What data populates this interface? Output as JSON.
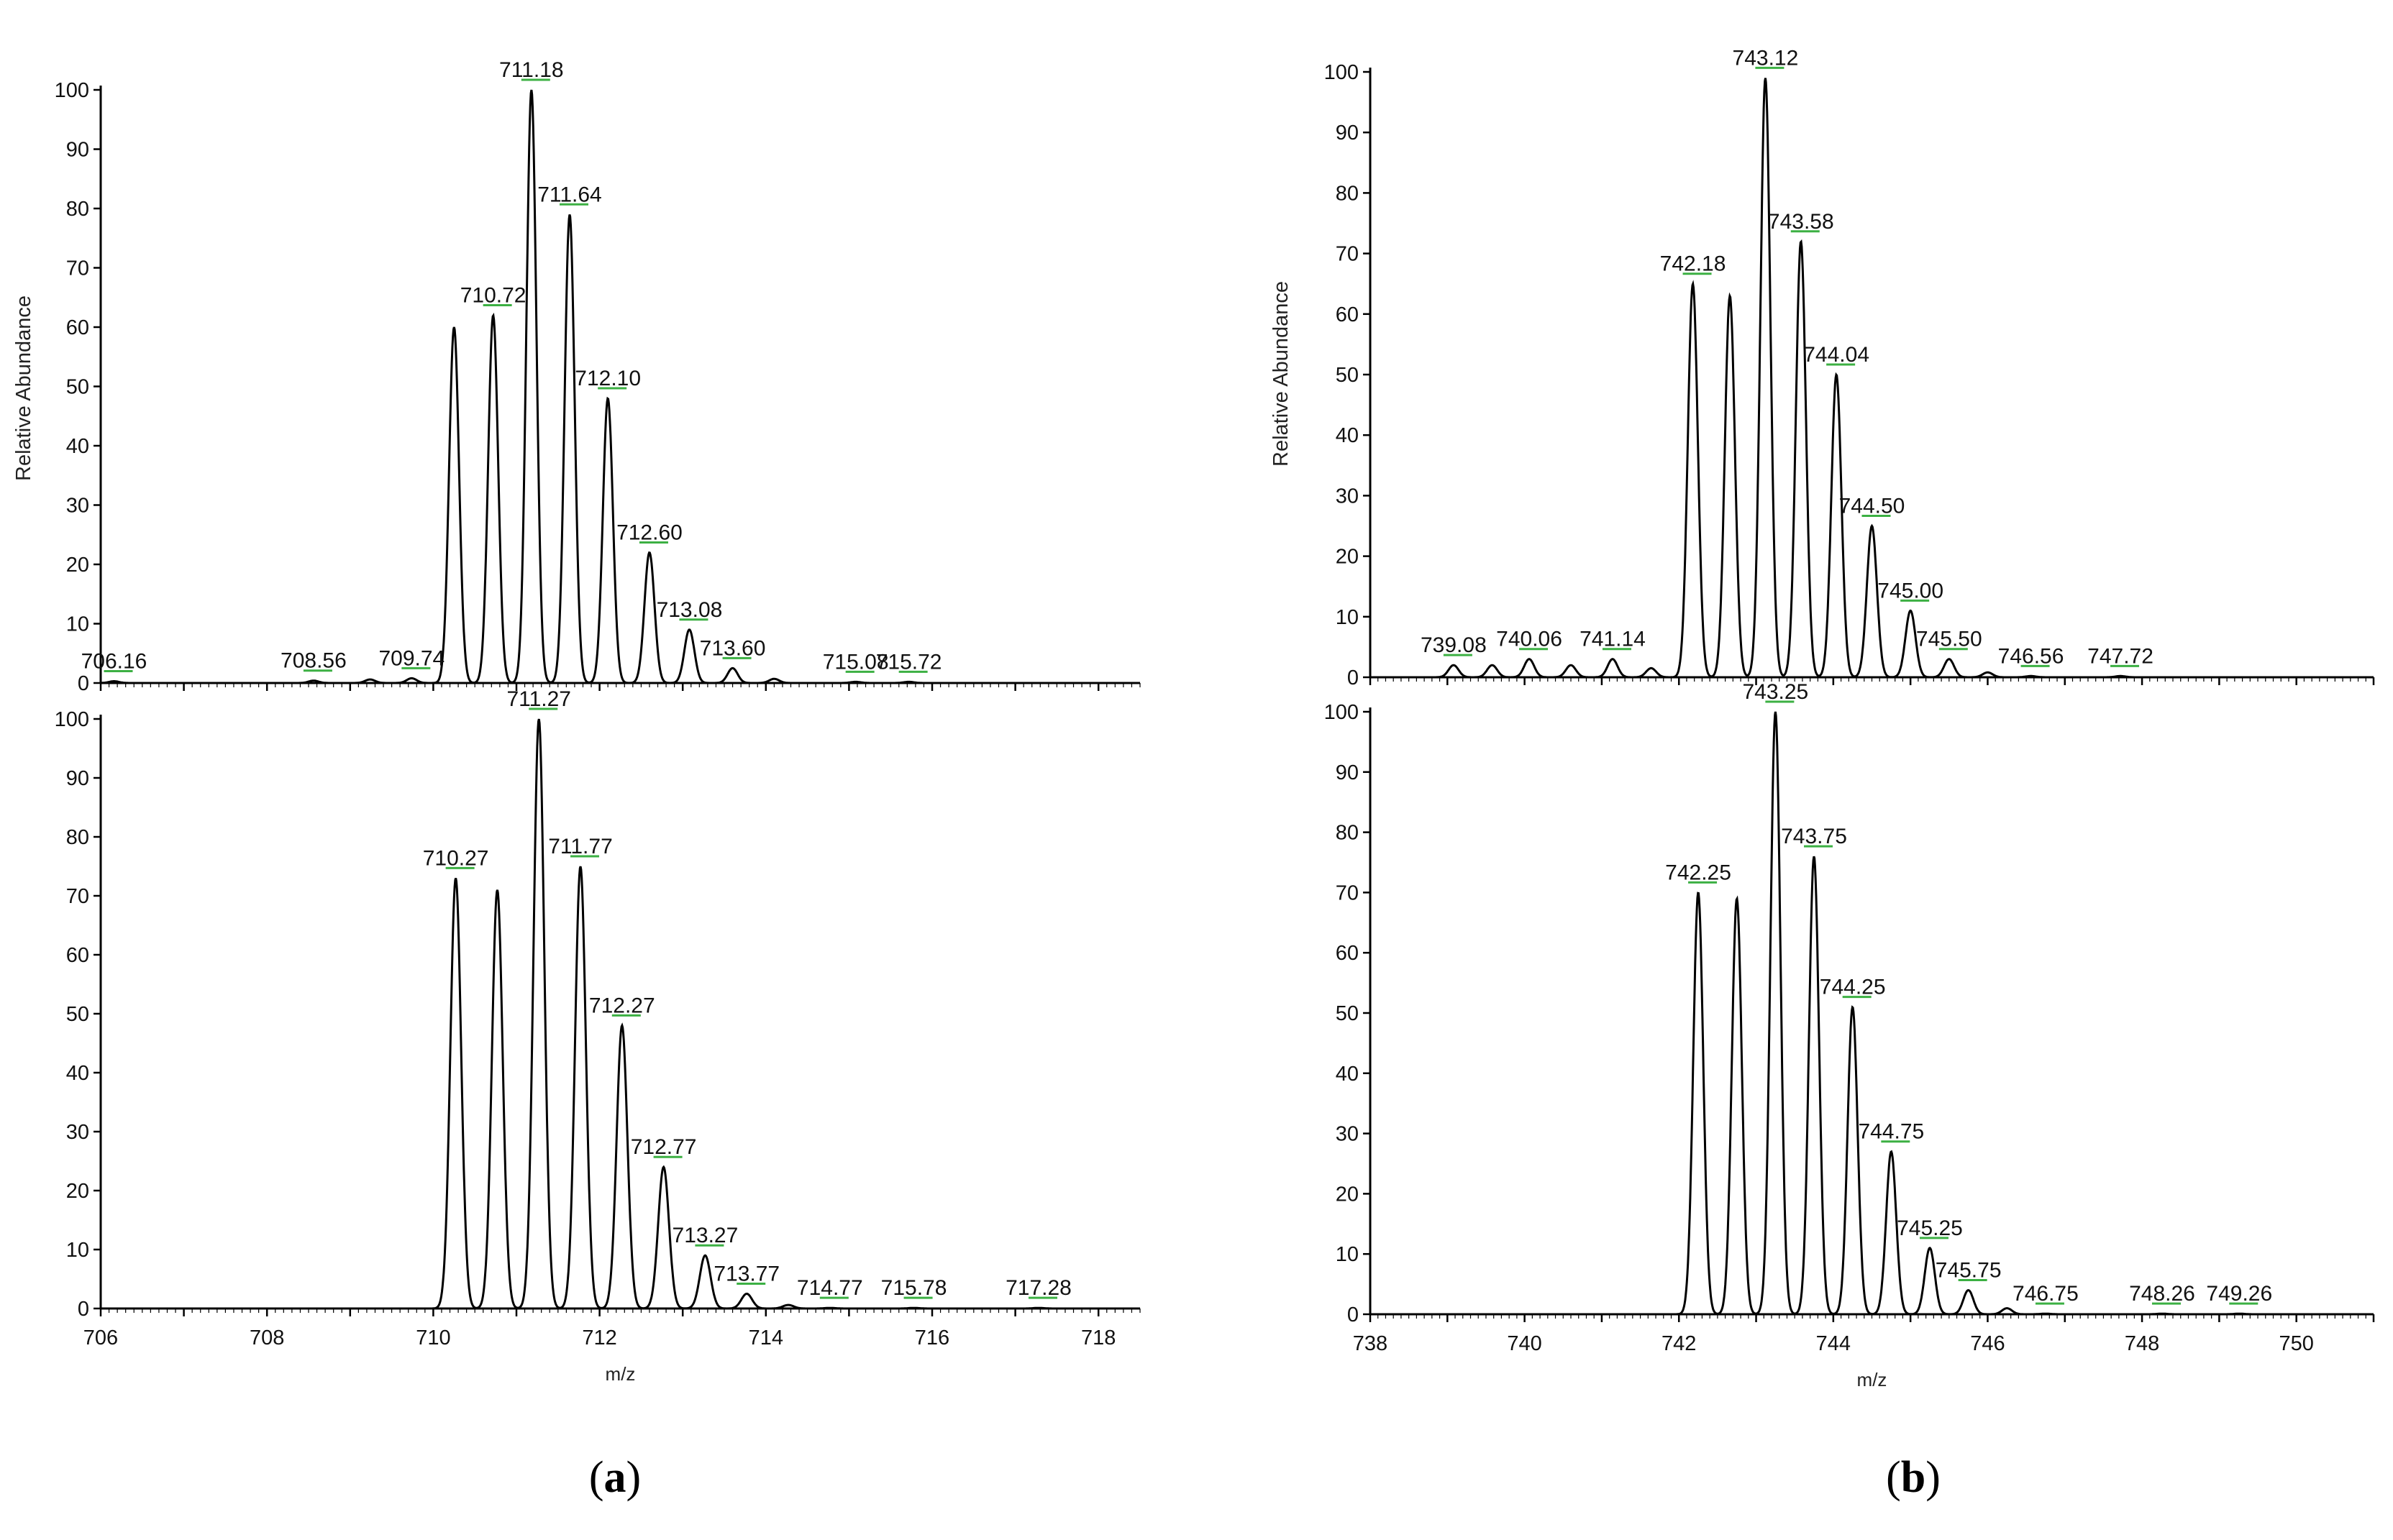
{
  "panels": {
    "a": {
      "open": "(",
      "letter": "a",
      "close": ")"
    },
    "b": {
      "open": "(",
      "letter": "b",
      "close": ")"
    }
  },
  "colors": {
    "trace": "#000000",
    "axis": "#000000",
    "label_marker": "#3cb043"
  },
  "chart_data": [
    {
      "id": "a-top",
      "type": "line",
      "panel": "a",
      "position": "top",
      "xlabel": "",
      "ylabel": "Relative Abundance",
      "xlim": [
        706,
        718.5
      ],
      "ylim": [
        0,
        100
      ],
      "yticks": [
        0,
        10,
        20,
        30,
        40,
        50,
        60,
        70,
        80,
        90,
        100
      ],
      "xticks": [],
      "peak_width": 0.06,
      "peaks": [
        {
          "x": 706.16,
          "y": 0.3,
          "label": "706.16"
        },
        {
          "x": 708.56,
          "y": 0.4,
          "label": "708.56"
        },
        {
          "x": 709.24,
          "y": 0.6
        },
        {
          "x": 709.74,
          "y": 0.8,
          "label": "709.74"
        },
        {
          "x": 710.25,
          "y": 60
        },
        {
          "x": 710.72,
          "y": 62,
          "label": "710.72"
        },
        {
          "x": 711.18,
          "y": 100,
          "label": "711.18"
        },
        {
          "x": 711.64,
          "y": 79,
          "label": "711.64"
        },
        {
          "x": 712.1,
          "y": 48,
          "label": "712.10"
        },
        {
          "x": 712.6,
          "y": 22,
          "label": "712.60"
        },
        {
          "x": 713.08,
          "y": 9,
          "label": "713.08"
        },
        {
          "x": 713.6,
          "y": 2.5,
          "label": "713.60"
        },
        {
          "x": 714.1,
          "y": 0.7
        },
        {
          "x": 715.08,
          "y": 0.2,
          "label": "715.08"
        },
        {
          "x": 715.72,
          "y": 0.2,
          "label": "715.72"
        }
      ]
    },
    {
      "id": "a-bottom",
      "type": "line",
      "panel": "a",
      "position": "bottom",
      "xlabel": "m/z",
      "ylabel": "",
      "xlim": [
        706,
        718.5
      ],
      "ylim": [
        0,
        100
      ],
      "yticks": [
        0,
        10,
        20,
        30,
        40,
        50,
        60,
        70,
        80,
        90,
        100
      ],
      "xticks": [
        706,
        708,
        710,
        712,
        714,
        716,
        718
      ],
      "peak_width": 0.065,
      "peaks": [
        {
          "x": 710.27,
          "y": 73,
          "label": "710.27"
        },
        {
          "x": 710.77,
          "y": 71
        },
        {
          "x": 711.27,
          "y": 100,
          "label": "711.27"
        },
        {
          "x": 711.77,
          "y": 75,
          "label": "711.77"
        },
        {
          "x": 712.27,
          "y": 48,
          "label": "712.27"
        },
        {
          "x": 712.77,
          "y": 24,
          "label": "712.77"
        },
        {
          "x": 713.27,
          "y": 9,
          "label": "713.27"
        },
        {
          "x": 713.77,
          "y": 2.5,
          "label": "713.77"
        },
        {
          "x": 714.27,
          "y": 0.6
        },
        {
          "x": 714.77,
          "y": 0.1,
          "label": "714.77"
        },
        {
          "x": 715.78,
          "y": 0.1,
          "label": "715.78"
        },
        {
          "x": 717.28,
          "y": 0.1,
          "label": "717.28"
        }
      ]
    },
    {
      "id": "b-top",
      "type": "line",
      "panel": "b",
      "position": "top",
      "xlabel": "",
      "ylabel": "Relative Abundance",
      "xlim": [
        738,
        751
      ],
      "ylim": [
        0,
        100
      ],
      "yticks": [
        0,
        10,
        20,
        30,
        40,
        50,
        60,
        70,
        80,
        90,
        100
      ],
      "xticks": [],
      "peak_width": 0.065,
      "peaks": [
        {
          "x": 739.08,
          "y": 2,
          "label": "739.08"
        },
        {
          "x": 739.58,
          "y": 2
        },
        {
          "x": 740.06,
          "y": 3,
          "label": "740.06"
        },
        {
          "x": 740.6,
          "y": 2
        },
        {
          "x": 741.14,
          "y": 3,
          "label": "741.14"
        },
        {
          "x": 741.64,
          "y": 1.5
        },
        {
          "x": 742.18,
          "y": 65,
          "label": "742.18"
        },
        {
          "x": 742.66,
          "y": 63
        },
        {
          "x": 743.12,
          "y": 99,
          "label": "743.12"
        },
        {
          "x": 743.58,
          "y": 72,
          "label": "743.58"
        },
        {
          "x": 744.04,
          "y": 50,
          "label": "744.04"
        },
        {
          "x": 744.5,
          "y": 25,
          "label": "744.50"
        },
        {
          "x": 745.0,
          "y": 11,
          "label": "745.00"
        },
        {
          "x": 745.5,
          "y": 3,
          "label": "745.50"
        },
        {
          "x": 746.0,
          "y": 0.8
        },
        {
          "x": 746.56,
          "y": 0.2,
          "label": "746.56"
        },
        {
          "x": 747.72,
          "y": 0.2,
          "label": "747.72"
        }
      ]
    },
    {
      "id": "b-bottom",
      "type": "line",
      "panel": "b",
      "position": "bottom",
      "xlabel": "m/z",
      "ylabel": "",
      "xlim": [
        738,
        751
      ],
      "ylim": [
        0,
        100
      ],
      "yticks": [
        0,
        10,
        20,
        30,
        40,
        50,
        60,
        70,
        80,
        90,
        100
      ],
      "xticks": [
        738,
        740,
        742,
        744,
        746,
        748,
        750
      ],
      "peak_width": 0.065,
      "peaks": [
        {
          "x": 742.25,
          "y": 70,
          "label": "742.25"
        },
        {
          "x": 742.75,
          "y": 69
        },
        {
          "x": 743.25,
          "y": 100,
          "label": "743.25"
        },
        {
          "x": 743.75,
          "y": 76,
          "label": "743.75"
        },
        {
          "x": 744.25,
          "y": 51,
          "label": "744.25"
        },
        {
          "x": 744.75,
          "y": 27,
          "label": "744.75"
        },
        {
          "x": 745.25,
          "y": 11,
          "label": "745.25"
        },
        {
          "x": 745.75,
          "y": 4,
          "label": "745.75"
        },
        {
          "x": 746.25,
          "y": 1
        },
        {
          "x": 746.75,
          "y": 0.1,
          "label": "746.75"
        },
        {
          "x": 748.26,
          "y": 0.1,
          "label": "748.26"
        },
        {
          "x": 749.26,
          "y": 0.1,
          "label": "749.26"
        }
      ]
    }
  ]
}
